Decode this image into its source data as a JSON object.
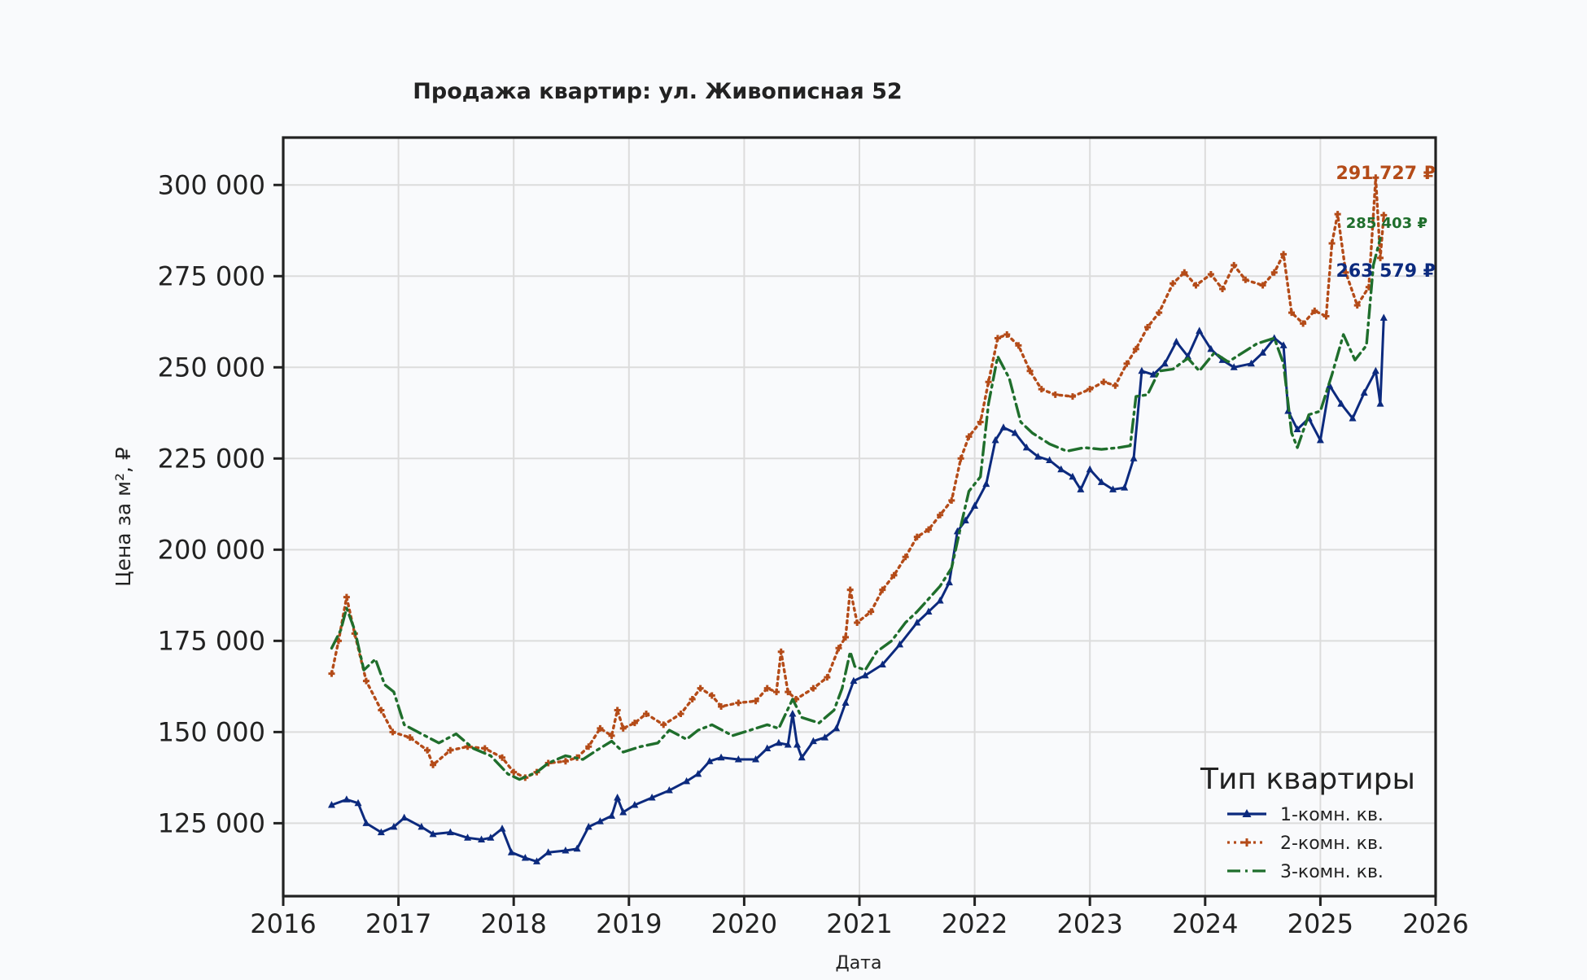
{
  "chart_data": {
    "type": "line",
    "title": "Продажа квартир: ул. Живописная 52",
    "xlabel": "Дата",
    "ylabel": "Цена за м², ₽",
    "xlim": [
      2016.0,
      2026.0
    ],
    "ylim": [
      105000,
      313000
    ],
    "x_ticks": [
      "2016",
      "2017",
      "2018",
      "2019",
      "2020",
      "2021",
      "2022",
      "2023",
      "2024",
      "2025",
      "2026"
    ],
    "y_ticks": [
      "125 000",
      "150 000",
      "175 000",
      "200 000",
      "225 000",
      "250 000",
      "275 000",
      "300 000"
    ],
    "y_tick_values": [
      125000,
      150000,
      175000,
      200000,
      225000,
      250000,
      275000,
      300000
    ],
    "x_tick_values": [
      2016,
      2017,
      2018,
      2019,
      2020,
      2021,
      2022,
      2023,
      2024,
      2025,
      2026
    ],
    "grid": true,
    "legend": {
      "title": "Тип квартиры",
      "position": "lower-right"
    },
    "series": [
      {
        "name": "1-комн. кв.",
        "color": "#0c2a7e",
        "style": "solid",
        "marker": "triangle",
        "end_label": "263 579 ₽",
        "points": [
          [
            2016.42,
            130000
          ],
          [
            2016.55,
            131500
          ],
          [
            2016.65,
            130500
          ],
          [
            2016.72,
            125000
          ],
          [
            2016.85,
            122500
          ],
          [
            2016.96,
            124000
          ],
          [
            2017.05,
            126500
          ],
          [
            2017.2,
            124000
          ],
          [
            2017.3,
            122000
          ],
          [
            2017.45,
            122500
          ],
          [
            2017.6,
            121000
          ],
          [
            2017.72,
            120500
          ],
          [
            2017.8,
            121000
          ],
          [
            2017.9,
            123500
          ],
          [
            2017.98,
            117000
          ],
          [
            2018.1,
            115500
          ],
          [
            2018.2,
            114500
          ],
          [
            2018.3,
            117000
          ],
          [
            2018.45,
            117500
          ],
          [
            2018.55,
            118000
          ],
          [
            2018.65,
            124000
          ],
          [
            2018.75,
            125500
          ],
          [
            2018.85,
            127000
          ],
          [
            2018.9,
            132000
          ],
          [
            2018.95,
            128000
          ],
          [
            2019.05,
            130000
          ],
          [
            2019.2,
            132000
          ],
          [
            2019.35,
            134000
          ],
          [
            2019.5,
            136500
          ],
          [
            2019.6,
            138500
          ],
          [
            2019.7,
            142000
          ],
          [
            2019.8,
            143000
          ],
          [
            2019.95,
            142500
          ],
          [
            2020.1,
            142500
          ],
          [
            2020.2,
            145500
          ],
          [
            2020.3,
            147000
          ],
          [
            2020.38,
            146500
          ],
          [
            2020.42,
            155000
          ],
          [
            2020.46,
            146500
          ],
          [
            2020.5,
            143000
          ],
          [
            2020.6,
            147500
          ],
          [
            2020.7,
            148500
          ],
          [
            2020.8,
            151000
          ],
          [
            2020.88,
            158000
          ],
          [
            2020.95,
            164000
          ],
          [
            2021.05,
            165500
          ],
          [
            2021.2,
            168500
          ],
          [
            2021.35,
            174000
          ],
          [
            2021.5,
            180000
          ],
          [
            2021.6,
            183000
          ],
          [
            2021.7,
            186000
          ],
          [
            2021.78,
            191000
          ],
          [
            2021.85,
            205000
          ],
          [
            2021.92,
            208000
          ],
          [
            2022.0,
            212000
          ],
          [
            2022.1,
            218000
          ],
          [
            2022.18,
            230000
          ],
          [
            2022.25,
            233500
          ],
          [
            2022.35,
            232000
          ],
          [
            2022.45,
            228000
          ],
          [
            2022.55,
            225500
          ],
          [
            2022.65,
            224500
          ],
          [
            2022.75,
            222000
          ],
          [
            2022.85,
            220000
          ],
          [
            2022.92,
            216500
          ],
          [
            2023.0,
            222000
          ],
          [
            2023.1,
            218500
          ],
          [
            2023.2,
            216500
          ],
          [
            2023.3,
            217000
          ],
          [
            2023.38,
            225000
          ],
          [
            2023.45,
            249000
          ],
          [
            2023.55,
            248000
          ],
          [
            2023.65,
            251000
          ],
          [
            2023.75,
            257000
          ],
          [
            2023.85,
            253000
          ],
          [
            2023.95,
            260000
          ],
          [
            2024.05,
            255000
          ],
          [
            2024.15,
            252000
          ],
          [
            2024.25,
            250000
          ],
          [
            2024.4,
            251000
          ],
          [
            2024.5,
            254000
          ],
          [
            2024.6,
            258000
          ],
          [
            2024.68,
            256000
          ],
          [
            2024.72,
            238000
          ],
          [
            2024.8,
            233000
          ],
          [
            2024.9,
            236000
          ],
          [
            2025.0,
            230000
          ],
          [
            2025.08,
            245000
          ],
          [
            2025.18,
            240000
          ],
          [
            2025.28,
            236000
          ],
          [
            2025.38,
            243000
          ],
          [
            2025.48,
            249000
          ],
          [
            2025.52,
            240000
          ],
          [
            2025.55,
            263579
          ]
        ]
      },
      {
        "name": "2-комн. кв.",
        "color": "#b44b18",
        "style": "dotted",
        "marker": "plus",
        "end_label": "291 727 ₽",
        "points": [
          [
            2016.42,
            166000
          ],
          [
            2016.48,
            175000
          ],
          [
            2016.55,
            187000
          ],
          [
            2016.62,
            177000
          ],
          [
            2016.72,
            164000
          ],
          [
            2016.85,
            156000
          ],
          [
            2016.95,
            150000
          ],
          [
            2017.1,
            148500
          ],
          [
            2017.25,
            145000
          ],
          [
            2017.3,
            141000
          ],
          [
            2017.45,
            145000
          ],
          [
            2017.6,
            146000
          ],
          [
            2017.75,
            145500
          ],
          [
            2017.9,
            143000
          ],
          [
            2018.0,
            139000
          ],
          [
            2018.1,
            137500
          ],
          [
            2018.2,
            139000
          ],
          [
            2018.3,
            141500
          ],
          [
            2018.45,
            142000
          ],
          [
            2018.55,
            143000
          ],
          [
            2018.65,
            146000
          ],
          [
            2018.75,
            151000
          ],
          [
            2018.85,
            149000
          ],
          [
            2018.9,
            156000
          ],
          [
            2018.95,
            151000
          ],
          [
            2019.05,
            152500
          ],
          [
            2019.15,
            155000
          ],
          [
            2019.3,
            152000
          ],
          [
            2019.45,
            155000
          ],
          [
            2019.55,
            159000
          ],
          [
            2019.62,
            162000
          ],
          [
            2019.72,
            160000
          ],
          [
            2019.8,
            157000
          ],
          [
            2019.95,
            158000
          ],
          [
            2020.1,
            158500
          ],
          [
            2020.2,
            162000
          ],
          [
            2020.28,
            161000
          ],
          [
            2020.32,
            172000
          ],
          [
            2020.38,
            161000
          ],
          [
            2020.45,
            159000
          ],
          [
            2020.6,
            162000
          ],
          [
            2020.72,
            165000
          ],
          [
            2020.82,
            173000
          ],
          [
            2020.88,
            176000
          ],
          [
            2020.92,
            189000
          ],
          [
            2020.98,
            180000
          ],
          [
            2021.1,
            183000
          ],
          [
            2021.2,
            189000
          ],
          [
            2021.3,
            193000
          ],
          [
            2021.4,
            198000
          ],
          [
            2021.5,
            203500
          ],
          [
            2021.6,
            205500
          ],
          [
            2021.7,
            209500
          ],
          [
            2021.8,
            213500
          ],
          [
            2021.88,
            225000
          ],
          [
            2021.95,
            231000
          ],
          [
            2022.05,
            235000
          ],
          [
            2022.12,
            246000
          ],
          [
            2022.2,
            258000
          ],
          [
            2022.28,
            259000
          ],
          [
            2022.38,
            256000
          ],
          [
            2022.48,
            249000
          ],
          [
            2022.58,
            244000
          ],
          [
            2022.7,
            242500
          ],
          [
            2022.85,
            242000
          ],
          [
            2023.0,
            244000
          ],
          [
            2023.12,
            246000
          ],
          [
            2023.22,
            245000
          ],
          [
            2023.32,
            251000
          ],
          [
            2023.4,
            255000
          ],
          [
            2023.5,
            261000
          ],
          [
            2023.6,
            265000
          ],
          [
            2023.72,
            273000
          ],
          [
            2023.82,
            276000
          ],
          [
            2023.92,
            272500
          ],
          [
            2024.05,
            275500
          ],
          [
            2024.15,
            271500
          ],
          [
            2024.25,
            278000
          ],
          [
            2024.35,
            274000
          ],
          [
            2024.5,
            272500
          ],
          [
            2024.6,
            276000
          ],
          [
            2024.68,
            281000
          ],
          [
            2024.75,
            265000
          ],
          [
            2024.85,
            262000
          ],
          [
            2024.95,
            265500
          ],
          [
            2025.05,
            264000
          ],
          [
            2025.1,
            284000
          ],
          [
            2025.15,
            292000
          ],
          [
            2025.22,
            276000
          ],
          [
            2025.32,
            267000
          ],
          [
            2025.42,
            272000
          ],
          [
            2025.48,
            302000
          ],
          [
            2025.52,
            280000
          ],
          [
            2025.55,
            291727
          ]
        ]
      },
      {
        "name": "3-комн. кв.",
        "color": "#1f6e2c",
        "style": "dashdot",
        "marker": "none",
        "end_label": "285 403 ₽",
        "points": [
          [
            2016.42,
            173000
          ],
          [
            2016.5,
            178000
          ],
          [
            2016.55,
            184000
          ],
          [
            2016.62,
            178000
          ],
          [
            2016.7,
            167000
          ],
          [
            2016.8,
            170000
          ],
          [
            2016.88,
            163000
          ],
          [
            2016.96,
            161000
          ],
          [
            2017.05,
            152000
          ],
          [
            2017.2,
            149500
          ],
          [
            2017.35,
            147000
          ],
          [
            2017.5,
            149500
          ],
          [
            2017.65,
            145500
          ],
          [
            2017.8,
            143500
          ],
          [
            2017.95,
            138500
          ],
          [
            2018.05,
            137000
          ],
          [
            2018.2,
            139000
          ],
          [
            2018.3,
            141500
          ],
          [
            2018.45,
            143500
          ],
          [
            2018.6,
            142500
          ],
          [
            2018.72,
            145000
          ],
          [
            2018.85,
            147500
          ],
          [
            2018.95,
            144500
          ],
          [
            2019.1,
            146000
          ],
          [
            2019.25,
            147000
          ],
          [
            2019.35,
            150500
          ],
          [
            2019.5,
            148000
          ],
          [
            2019.6,
            150500
          ],
          [
            2019.72,
            152000
          ],
          [
            2019.78,
            151000
          ],
          [
            2019.9,
            149000
          ],
          [
            2020.05,
            150500
          ],
          [
            2020.2,
            152000
          ],
          [
            2020.3,
            151000
          ],
          [
            2020.42,
            159000
          ],
          [
            2020.5,
            154000
          ],
          [
            2020.65,
            152500
          ],
          [
            2020.78,
            156000
          ],
          [
            2020.85,
            162000
          ],
          [
            2020.92,
            172000
          ],
          [
            2020.96,
            168000
          ],
          [
            2021.05,
            167000
          ],
          [
            2021.15,
            172000
          ],
          [
            2021.28,
            175000
          ],
          [
            2021.4,
            180000
          ],
          [
            2021.5,
            183000
          ],
          [
            2021.6,
            186500
          ],
          [
            2021.7,
            190000
          ],
          [
            2021.8,
            195000
          ],
          [
            2021.88,
            206500
          ],
          [
            2021.95,
            216000
          ],
          [
            2022.05,
            220000
          ],
          [
            2022.12,
            240000
          ],
          [
            2022.2,
            253000
          ],
          [
            2022.3,
            247000
          ],
          [
            2022.4,
            235000
          ],
          [
            2022.5,
            232000
          ],
          [
            2022.65,
            229000
          ],
          [
            2022.8,
            227000
          ],
          [
            2022.95,
            228000
          ],
          [
            2023.1,
            227500
          ],
          [
            2023.25,
            228000
          ],
          [
            2023.35,
            228500
          ],
          [
            2023.4,
            242000
          ],
          [
            2023.5,
            242500
          ],
          [
            2023.6,
            249000
          ],
          [
            2023.72,
            249500
          ],
          [
            2023.85,
            252500
          ],
          [
            2023.95,
            249000
          ],
          [
            2024.08,
            254000
          ],
          [
            2024.2,
            251500
          ],
          [
            2024.3,
            253500
          ],
          [
            2024.45,
            256500
          ],
          [
            2024.6,
            258000
          ],
          [
            2024.68,
            251000
          ],
          [
            2024.75,
            232000
          ],
          [
            2024.8,
            228000
          ],
          [
            2024.9,
            237000
          ],
          [
            2025.0,
            238000
          ],
          [
            2025.1,
            248000
          ],
          [
            2025.2,
            259000
          ],
          [
            2025.3,
            252000
          ],
          [
            2025.4,
            256000
          ],
          [
            2025.46,
            278000
          ],
          [
            2025.52,
            285403
          ]
        ]
      }
    ]
  }
}
